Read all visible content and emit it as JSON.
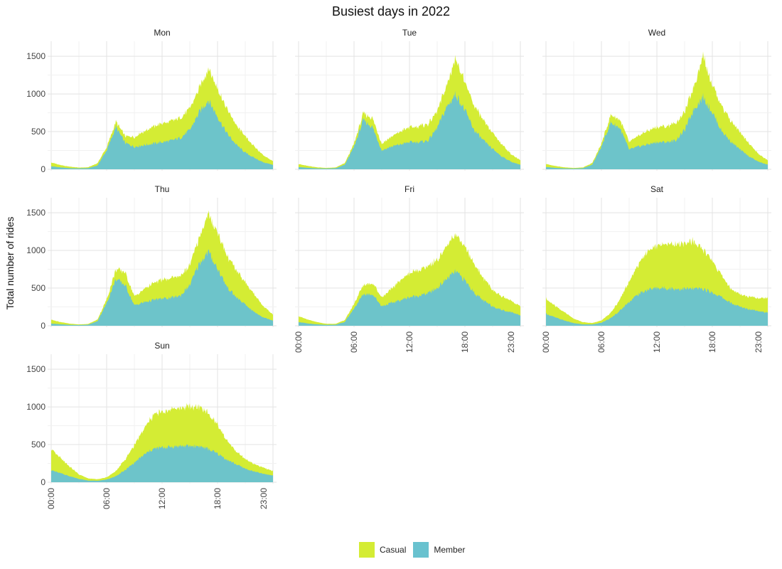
{
  "chart_data": {
    "type": "area",
    "stacked": true,
    "title": "Busiest days in 2022",
    "xlabel": "",
    "ylabel": "Total number of rides",
    "ylim": [
      0,
      1700
    ],
    "y_ticks": [
      0,
      500,
      1000,
      1500
    ],
    "x_range_hours": [
      0,
      24
    ],
    "x_ticks": [
      {
        "hour": 0,
        "label": "00:00"
      },
      {
        "hour": 6,
        "label": "06:00"
      },
      {
        "hour": 12,
        "label": "12:00"
      },
      {
        "hour": 18,
        "label": "18:00"
      },
      {
        "hour": 23,
        "label": "23:00"
      }
    ],
    "grid": true,
    "legend_position": "bottom",
    "series_order": [
      "Member",
      "Casual"
    ],
    "legend": [
      {
        "name": "Casual",
        "color": "#d4ec34"
      },
      {
        "name": "Member",
        "color": "#69c2cf"
      }
    ],
    "panels": [
      {
        "label": "Mon",
        "x": [
          0,
          1,
          2,
          3,
          4,
          5,
          6,
          7,
          8,
          9,
          10,
          11,
          12,
          13,
          14,
          15,
          16,
          17,
          18,
          19,
          20,
          21,
          22,
          23,
          24
        ],
        "member": [
          40,
          25,
          15,
          12,
          15,
          50,
          250,
          560,
          350,
          300,
          320,
          340,
          360,
          380,
          420,
          520,
          750,
          920,
          700,
          480,
          330,
          220,
          150,
          90,
          60
        ],
        "casual": [
          50,
          30,
          20,
          10,
          12,
          30,
          40,
          70,
          90,
          130,
          180,
          220,
          250,
          260,
          260,
          280,
          320,
          420,
          380,
          320,
          260,
          210,
          150,
          90,
          50
        ]
      },
      {
        "label": "Tue",
        "x": [
          0,
          1,
          2,
          3,
          4,
          5,
          6,
          7,
          8,
          9,
          10,
          11,
          12,
          13,
          14,
          15,
          16,
          17,
          18,
          19,
          20,
          21,
          22,
          23,
          24
        ],
        "member": [
          30,
          20,
          12,
          10,
          14,
          60,
          300,
          650,
          560,
          250,
          300,
          330,
          360,
          360,
          380,
          550,
          820,
          1000,
          780,
          520,
          380,
          270,
          170,
          100,
          60
        ],
        "casual": [
          40,
          25,
          14,
          8,
          10,
          22,
          40,
          90,
          120,
          90,
          130,
          170,
          200,
          210,
          220,
          220,
          280,
          480,
          370,
          330,
          270,
          210,
          160,
          100,
          60
        ]
      },
      {
        "label": "Wed",
        "x": [
          0,
          1,
          2,
          3,
          4,
          5,
          6,
          7,
          8,
          9,
          10,
          11,
          12,
          13,
          14,
          15,
          16,
          17,
          18,
          19,
          20,
          21,
          22,
          23,
          24
        ],
        "member": [
          30,
          20,
          12,
          10,
          14,
          60,
          300,
          620,
          550,
          260,
          300,
          330,
          360,
          360,
          380,
          520,
          800,
          960,
          760,
          510,
          370,
          260,
          170,
          100,
          60
        ],
        "casual": [
          40,
          25,
          14,
          8,
          10,
          22,
          40,
          100,
          110,
          100,
          140,
          180,
          200,
          210,
          230,
          230,
          300,
          560,
          370,
          330,
          280,
          220,
          170,
          100,
          60
        ]
      },
      {
        "label": "Thu",
        "x": [
          0,
          1,
          2,
          3,
          4,
          5,
          6,
          7,
          8,
          9,
          10,
          11,
          12,
          13,
          14,
          15,
          16,
          17,
          18,
          19,
          20,
          21,
          22,
          23,
          24
        ],
        "member": [
          30,
          20,
          12,
          10,
          14,
          60,
          300,
          620,
          540,
          270,
          310,
          340,
          360,
          370,
          400,
          540,
          820,
          980,
          760,
          520,
          380,
          280,
          180,
          110,
          70
        ],
        "casual": [
          50,
          30,
          16,
          8,
          10,
          22,
          50,
          130,
          170,
          120,
          170,
          220,
          250,
          260,
          260,
          260,
          350,
          500,
          480,
          420,
          360,
          300,
          230,
          150,
          80
        ]
      },
      {
        "label": "Fri",
        "x": [
          0,
          1,
          2,
          3,
          4,
          5,
          6,
          7,
          8,
          9,
          10,
          11,
          12,
          13,
          14,
          15,
          16,
          17,
          18,
          19,
          20,
          21,
          22,
          23,
          24
        ],
        "member": [
          50,
          30,
          18,
          12,
          14,
          50,
          230,
          420,
          420,
          260,
          300,
          340,
          380,
          400,
          430,
          500,
          620,
          720,
          600,
          440,
          330,
          260,
          210,
          180,
          140
        ],
        "casual": [
          80,
          50,
          30,
          14,
          12,
          25,
          60,
          120,
          150,
          120,
          180,
          260,
          320,
          340,
          360,
          380,
          430,
          480,
          450,
          380,
          300,
          220,
          180,
          150,
          120
        ]
      },
      {
        "label": "Sat",
        "x": [
          0,
          1,
          2,
          3,
          4,
          5,
          6,
          7,
          8,
          9,
          10,
          11,
          12,
          13,
          14,
          15,
          16,
          17,
          18,
          19,
          20,
          21,
          22,
          23,
          24
        ],
        "member": [
          160,
          110,
          70,
          35,
          18,
          18,
          40,
          100,
          200,
          320,
          420,
          480,
          500,
          500,
          490,
          490,
          490,
          490,
          440,
          380,
          300,
          250,
          220,
          200,
          170
        ],
        "casual": [
          200,
          150,
          110,
          60,
          30,
          18,
          30,
          70,
          150,
          270,
          400,
          520,
          560,
          590,
          600,
          620,
          620,
          520,
          430,
          280,
          190,
          160,
          170,
          170,
          200
        ]
      },
      {
        "label": "Sun",
        "x": [
          0,
          1,
          2,
          3,
          4,
          5,
          6,
          7,
          8,
          9,
          10,
          11,
          12,
          13,
          14,
          15,
          16,
          17,
          18,
          19,
          20,
          21,
          22,
          23,
          24
        ],
        "member": [
          160,
          120,
          80,
          45,
          22,
          20,
          35,
          80,
          160,
          260,
          360,
          440,
          460,
          470,
          480,
          480,
          480,
          440,
          380,
          300,
          240,
          180,
          140,
          110,
          90
        ],
        "casual": [
          270,
          200,
          130,
          60,
          28,
          20,
          30,
          70,
          140,
          230,
          340,
          440,
          480,
          500,
          510,
          520,
          520,
          470,
          380,
          260,
          170,
          130,
          100,
          80,
          60
        ]
      }
    ]
  }
}
